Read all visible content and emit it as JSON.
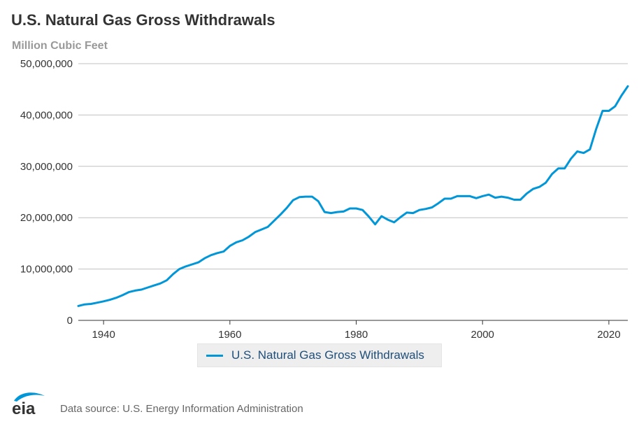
{
  "title": "U.S. Natural Gas Gross Withdrawals",
  "subtitle": "Million Cubic Feet",
  "source": "Data source: U.S. Energy Information Administration",
  "logo_text": "eia",
  "colors": {
    "series": "#0096d7",
    "grid": "#c0c0c0",
    "axis": "#333333",
    "logo_swoosh": "#0096d7",
    "logo_text": "#333333"
  },
  "chart_data": {
    "type": "line",
    "title": "U.S. Natural Gas Gross Withdrawals",
    "ylabel": "Million Cubic Feet",
    "xlabel": "",
    "xlim": [
      1936,
      2023
    ],
    "ylim": [
      0,
      50000000
    ],
    "grid": true,
    "legend_position": "bottom-center",
    "yticks": [
      0,
      10000000,
      20000000,
      30000000,
      40000000,
      50000000
    ],
    "ytick_labels": [
      "0",
      "10,000,000",
      "20,000,000",
      "30,000,000",
      "40,000,000",
      "50,000,000"
    ],
    "xticks": [
      1940,
      1960,
      1980,
      2000,
      2020
    ],
    "xtick_labels": [
      "1940",
      "1960",
      "1980",
      "2000",
      "2020"
    ],
    "series": [
      {
        "name": "U.S. Natural Gas Gross Withdrawals",
        "color": "#0096d7",
        "x": [
          1936,
          1937,
          1938,
          1939,
          1940,
          1941,
          1942,
          1943,
          1944,
          1945,
          1946,
          1947,
          1948,
          1949,
          1950,
          1951,
          1952,
          1953,
          1954,
          1955,
          1956,
          1957,
          1958,
          1959,
          1960,
          1961,
          1962,
          1963,
          1964,
          1965,
          1966,
          1967,
          1968,
          1969,
          1970,
          1971,
          1972,
          1973,
          1974,
          1975,
          1976,
          1977,
          1978,
          1979,
          1980,
          1981,
          1982,
          1983,
          1984,
          1985,
          1986,
          1987,
          1988,
          1989,
          1990,
          1991,
          1992,
          1993,
          1994,
          1995,
          1996,
          1997,
          1998,
          1999,
          2000,
          2001,
          2002,
          2003,
          2004,
          2005,
          2006,
          2007,
          2008,
          2009,
          2010,
          2011,
          2012,
          2013,
          2014,
          2015,
          2016,
          2017,
          2018,
          2019,
          2020,
          2021,
          2022,
          2023
        ],
        "values": [
          2800000,
          3100000,
          3200000,
          3450000,
          3700000,
          4000000,
          4400000,
          4900000,
          5500000,
          5800000,
          6000000,
          6400000,
          6800000,
          7200000,
          7800000,
          9000000,
          10000000,
          10500000,
          10900000,
          11300000,
          12100000,
          12700000,
          13100000,
          13400000,
          14500000,
          15200000,
          15600000,
          16300000,
          17200000,
          17700000,
          18200000,
          19400000,
          20600000,
          21900000,
          23400000,
          24000000,
          24100000,
          24100000,
          23200000,
          21100000,
          20900000,
          21100000,
          21200000,
          21800000,
          21800000,
          21500000,
          20200000,
          18700000,
          20300000,
          19600000,
          19100000,
          20100000,
          21000000,
          20900000,
          21500000,
          21700000,
          22000000,
          22800000,
          23700000,
          23700000,
          24200000,
          24200000,
          24200000,
          23800000,
          24200000,
          24500000,
          23900000,
          24100000,
          23900000,
          23500000,
          23500000,
          24700000,
          25600000,
          26000000,
          26800000,
          28500000,
          29600000,
          29600000,
          31500000,
          32900000,
          32600000,
          33300000,
          37300000,
          40800000,
          40800000,
          41700000,
          43800000,
          45600000
        ]
      }
    ]
  }
}
